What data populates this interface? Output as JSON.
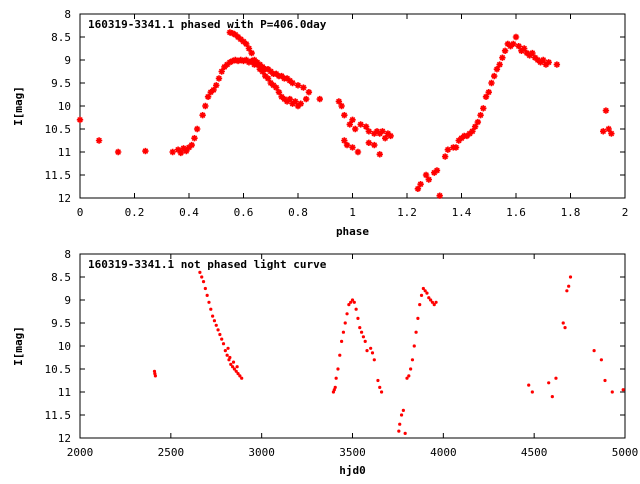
{
  "colors": {
    "points": "#ff0000",
    "axes": "#000000",
    "background": "#ffffff"
  },
  "chart_data": [
    {
      "type": "scatter",
      "title": "160319-3341.1 phased with P=406.0day",
      "xlabel": "phase",
      "ylabel": "I[mag]",
      "xlim": [
        0,
        2
      ],
      "ylim": [
        12,
        8
      ],
      "y_inverted": true,
      "grid": false,
      "legend": "none",
      "marker": "star",
      "xticks": [
        "0",
        "0.2",
        "0.4",
        "0.6",
        "0.8",
        "1",
        "1.2",
        "1.4",
        "1.6",
        "1.8",
        "2"
      ],
      "yticks": [
        "8",
        "8.5",
        "9",
        "9.5",
        "10",
        "10.5",
        "11",
        "11.5",
        "12"
      ],
      "points": [
        [
          0.0,
          10.3
        ],
        [
          0.07,
          10.75
        ],
        [
          0.14,
          11.0
        ],
        [
          0.24,
          10.98
        ],
        [
          0.34,
          11.0
        ],
        [
          0.36,
          10.95
        ],
        [
          0.37,
          11.02
        ],
        [
          0.38,
          10.92
        ],
        [
          0.39,
          10.98
        ],
        [
          0.4,
          10.9
        ],
        [
          0.41,
          10.85
        ],
        [
          0.42,
          10.7
        ],
        [
          0.43,
          10.5
        ],
        [
          0.45,
          10.2
        ],
        [
          0.46,
          10.0
        ],
        [
          0.47,
          9.8
        ],
        [
          0.48,
          9.7
        ],
        [
          0.49,
          9.65
        ],
        [
          0.5,
          9.55
        ],
        [
          0.51,
          9.4
        ],
        [
          0.52,
          9.25
        ],
        [
          0.53,
          9.15
        ],
        [
          0.54,
          9.1
        ],
        [
          0.55,
          9.05
        ],
        [
          0.56,
          9.02
        ],
        [
          0.57,
          9.0
        ],
        [
          0.58,
          9.02
        ],
        [
          0.59,
          9.0
        ],
        [
          0.6,
          9.02
        ],
        [
          0.61,
          9.0
        ],
        [
          0.62,
          9.05
        ],
        [
          0.63,
          9.02
        ],
        [
          0.64,
          9.1
        ],
        [
          0.65,
          9.05
        ],
        [
          0.66,
          9.1
        ],
        [
          0.67,
          9.15
        ],
        [
          0.68,
          9.2
        ],
        [
          0.69,
          9.2
        ],
        [
          0.7,
          9.25
        ],
        [
          0.71,
          9.3
        ],
        [
          0.72,
          9.3
        ],
        [
          0.73,
          9.35
        ],
        [
          0.74,
          9.35
        ],
        [
          0.75,
          9.4
        ],
        [
          0.76,
          9.4
        ],
        [
          0.77,
          9.45
        ],
        [
          0.78,
          9.5
        ],
        [
          0.8,
          9.55
        ],
        [
          0.82,
          9.6
        ],
        [
          0.84,
          9.7
        ],
        [
          0.88,
          9.85
        ],
        [
          0.55,
          8.4
        ],
        [
          0.56,
          8.42
        ],
        [
          0.57,
          8.45
        ],
        [
          0.58,
          8.5
        ],
        [
          0.59,
          8.55
        ],
        [
          0.6,
          8.6
        ],
        [
          0.61,
          8.65
        ],
        [
          0.62,
          8.75
        ],
        [
          0.63,
          8.85
        ],
        [
          0.64,
          9.0
        ],
        [
          0.65,
          9.1
        ],
        [
          0.66,
          9.2
        ],
        [
          0.67,
          9.25
        ],
        [
          0.68,
          9.35
        ],
        [
          0.69,
          9.4
        ],
        [
          0.7,
          9.5
        ],
        [
          0.71,
          9.55
        ],
        [
          0.72,
          9.6
        ],
        [
          0.73,
          9.7
        ],
        [
          0.74,
          9.8
        ],
        [
          0.75,
          9.85
        ],
        [
          0.76,
          9.9
        ],
        [
          0.77,
          9.85
        ],
        [
          0.78,
          9.95
        ],
        [
          0.79,
          9.9
        ],
        [
          0.8,
          10.0
        ],
        [
          0.81,
          9.95
        ],
        [
          0.83,
          9.85
        ],
        [
          0.95,
          9.9
        ],
        [
          0.96,
          10.0
        ],
        [
          0.97,
          10.2
        ],
        [
          0.99,
          10.4
        ],
        [
          1.0,
          10.3
        ],
        [
          1.01,
          10.5
        ],
        [
          1.03,
          10.4
        ],
        [
          1.05,
          10.45
        ],
        [
          1.06,
          10.55
        ],
        [
          1.08,
          10.6
        ],
        [
          1.09,
          10.55
        ],
        [
          1.1,
          10.6
        ],
        [
          1.11,
          10.55
        ],
        [
          1.12,
          10.7
        ],
        [
          1.13,
          10.6
        ],
        [
          1.14,
          10.65
        ],
        [
          0.97,
          10.75
        ],
        [
          0.98,
          10.85
        ],
        [
          1.0,
          10.9
        ],
        [
          1.02,
          11.0
        ],
        [
          1.06,
          10.8
        ],
        [
          1.08,
          10.85
        ],
        [
          1.1,
          11.05
        ],
        [
          1.24,
          11.8
        ],
        [
          1.25,
          11.7
        ],
        [
          1.27,
          11.5
        ],
        [
          1.28,
          11.6
        ],
        [
          1.3,
          11.45
        ],
        [
          1.31,
          11.4
        ],
        [
          1.32,
          11.95
        ],
        [
          1.34,
          11.1
        ],
        [
          1.35,
          10.95
        ],
        [
          1.37,
          10.9
        ],
        [
          1.38,
          10.9
        ],
        [
          1.39,
          10.75
        ],
        [
          1.4,
          10.7
        ],
        [
          1.41,
          10.65
        ],
        [
          1.42,
          10.65
        ],
        [
          1.43,
          10.6
        ],
        [
          1.44,
          10.55
        ],
        [
          1.45,
          10.45
        ],
        [
          1.46,
          10.35
        ],
        [
          1.47,
          10.2
        ],
        [
          1.48,
          10.05
        ],
        [
          1.49,
          9.8
        ],
        [
          1.5,
          9.7
        ],
        [
          1.51,
          9.5
        ],
        [
          1.52,
          9.35
        ],
        [
          1.53,
          9.2
        ],
        [
          1.54,
          9.1
        ],
        [
          1.55,
          8.95
        ],
        [
          1.56,
          8.8
        ],
        [
          1.57,
          8.65
        ],
        [
          1.58,
          8.7
        ],
        [
          1.59,
          8.65
        ],
        [
          1.6,
          8.5
        ],
        [
          1.61,
          8.7
        ],
        [
          1.62,
          8.8
        ],
        [
          1.63,
          8.75
        ],
        [
          1.64,
          8.85
        ],
        [
          1.65,
          8.9
        ],
        [
          1.66,
          8.85
        ],
        [
          1.67,
          8.95
        ],
        [
          1.68,
          9.0
        ],
        [
          1.69,
          9.05
        ],
        [
          1.7,
          9.0
        ],
        [
          1.71,
          9.1
        ],
        [
          1.72,
          9.05
        ],
        [
          1.75,
          9.1
        ],
        [
          1.92,
          10.55
        ],
        [
          1.93,
          10.1
        ],
        [
          1.94,
          10.5
        ],
        [
          1.95,
          10.6
        ]
      ]
    },
    {
      "type": "scatter",
      "title": "160319-3341.1 not phased light curve",
      "xlabel": "hjd0",
      "ylabel": "I[mag]",
      "xlim": [
        2000,
        5000
      ],
      "ylim": [
        12,
        8
      ],
      "y_inverted": true,
      "grid": false,
      "legend": "none",
      "marker": "dot",
      "xticks": [
        "2000",
        "2500",
        "3000",
        "3500",
        "4000",
        "4500",
        "5000"
      ],
      "yticks": [
        "8",
        "8.5",
        "9",
        "9.5",
        "10",
        "10.5",
        "11",
        "11.5",
        "12"
      ],
      "points": [
        [
          2410,
          10.55
        ],
        [
          2412,
          10.6
        ],
        [
          2415,
          10.65
        ],
        [
          2660,
          8.4
        ],
        [
          2670,
          8.5
        ],
        [
          2680,
          8.6
        ],
        [
          2690,
          8.75
        ],
        [
          2700,
          8.9
        ],
        [
          2710,
          9.05
        ],
        [
          2720,
          9.2
        ],
        [
          2730,
          9.35
        ],
        [
          2740,
          9.45
        ],
        [
          2750,
          9.55
        ],
        [
          2760,
          9.65
        ],
        [
          2770,
          9.75
        ],
        [
          2780,
          9.85
        ],
        [
          2790,
          9.95
        ],
        [
          2800,
          10.1
        ],
        [
          2810,
          10.2
        ],
        [
          2820,
          10.3
        ],
        [
          2830,
          10.4
        ],
        [
          2840,
          10.45
        ],
        [
          2850,
          10.5
        ],
        [
          2860,
          10.55
        ],
        [
          2870,
          10.6
        ],
        [
          2880,
          10.65
        ],
        [
          2890,
          10.7
        ],
        [
          2815,
          10.05
        ],
        [
          2825,
          10.25
        ],
        [
          2845,
          10.35
        ],
        [
          2865,
          10.45
        ],
        [
          3395,
          11.0
        ],
        [
          3400,
          10.95
        ],
        [
          3405,
          10.9
        ],
        [
          3410,
          10.7
        ],
        [
          3420,
          10.5
        ],
        [
          3430,
          10.2
        ],
        [
          3440,
          9.9
        ],
        [
          3450,
          9.7
        ],
        [
          3460,
          9.5
        ],
        [
          3470,
          9.3
        ],
        [
          3480,
          9.1
        ],
        [
          3490,
          9.05
        ],
        [
          3500,
          9.0
        ],
        [
          3510,
          9.05
        ],
        [
          3520,
          9.2
        ],
        [
          3530,
          9.4
        ],
        [
          3540,
          9.6
        ],
        [
          3550,
          9.7
        ],
        [
          3560,
          9.8
        ],
        [
          3570,
          9.9
        ],
        [
          3580,
          10.1
        ],
        [
          3600,
          10.05
        ],
        [
          3610,
          10.15
        ],
        [
          3620,
          10.3
        ],
        [
          3640,
          10.75
        ],
        [
          3650,
          10.9
        ],
        [
          3660,
          11.0
        ],
        [
          3755,
          11.85
        ],
        [
          3760,
          11.7
        ],
        [
          3770,
          11.5
        ],
        [
          3780,
          11.4
        ],
        [
          3790,
          11.9
        ],
        [
          3800,
          10.7
        ],
        [
          3810,
          10.65
        ],
        [
          3820,
          10.5
        ],
        [
          3830,
          10.3
        ],
        [
          3840,
          10.0
        ],
        [
          3850,
          9.7
        ],
        [
          3860,
          9.4
        ],
        [
          3870,
          9.1
        ],
        [
          3880,
          8.9
        ],
        [
          3890,
          8.75
        ],
        [
          3900,
          8.8
        ],
        [
          3910,
          8.85
        ],
        [
          3920,
          8.95
        ],
        [
          3930,
          9.0
        ],
        [
          3940,
          9.05
        ],
        [
          3950,
          9.1
        ],
        [
          3960,
          9.05
        ],
        [
          4470,
          10.85
        ],
        [
          4490,
          11.0
        ],
        [
          4580,
          10.8
        ],
        [
          4600,
          11.1
        ],
        [
          4620,
          10.7
        ],
        [
          4660,
          9.5
        ],
        [
          4670,
          9.6
        ],
        [
          4680,
          8.8
        ],
        [
          4690,
          8.7
        ],
        [
          4700,
          8.5
        ],
        [
          4830,
          10.1
        ],
        [
          4870,
          10.3
        ],
        [
          4890,
          10.75
        ],
        [
          4930,
          11.0
        ],
        [
          4990,
          10.95
        ]
      ]
    }
  ]
}
